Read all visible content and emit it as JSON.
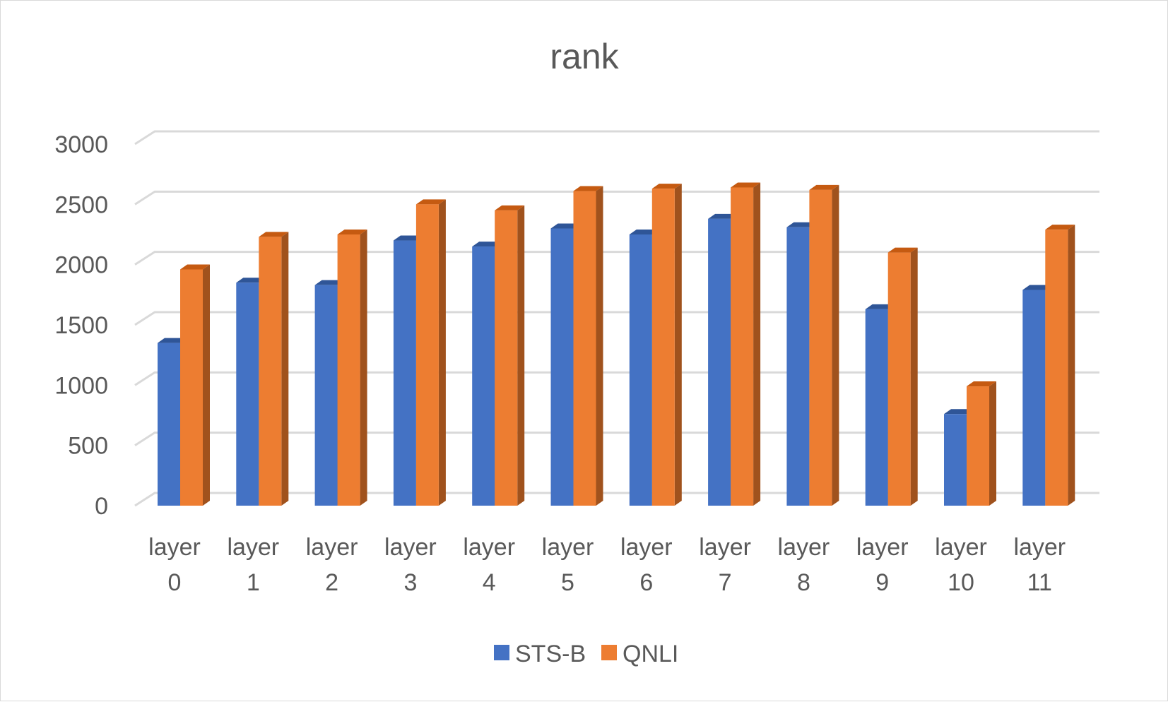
{
  "chart_data": {
    "type": "bar",
    "title": "rank",
    "categories": [
      [
        "layer",
        "0"
      ],
      [
        "layer",
        "1"
      ],
      [
        "layer",
        "2"
      ],
      [
        "layer",
        "3"
      ],
      [
        "layer",
        "4"
      ],
      [
        "layer",
        "5"
      ],
      [
        "layer",
        "6"
      ],
      [
        "layer",
        "7"
      ],
      [
        "layer",
        "8"
      ],
      [
        "layer",
        "9"
      ],
      [
        "layer",
        "10"
      ],
      [
        "layer",
        "11"
      ]
    ],
    "series": [
      {
        "name": "STS-B",
        "color": "#4472C4",
        "top_color": "#2F5597",
        "values": [
          1350,
          1850,
          1830,
          2200,
          2150,
          2300,
          2250,
          2380,
          2310,
          1630,
          760,
          1790
        ]
      },
      {
        "name": "QNLI",
        "color": "#ED7D31",
        "top_color": "#C55A11",
        "side_color": "#A0521D",
        "values": [
          1960,
          2230,
          2250,
          2500,
          2450,
          2610,
          2630,
          2640,
          2620,
          2100,
          990,
          2290
        ]
      }
    ],
    "ylim": [
      0,
      3000
    ],
    "yticks": [
      "0",
      "500",
      "1000",
      "1500",
      "2000",
      "2500",
      "3000"
    ],
    "grid": true,
    "legend_position": "bottom",
    "style": "3d-clustered-column"
  }
}
